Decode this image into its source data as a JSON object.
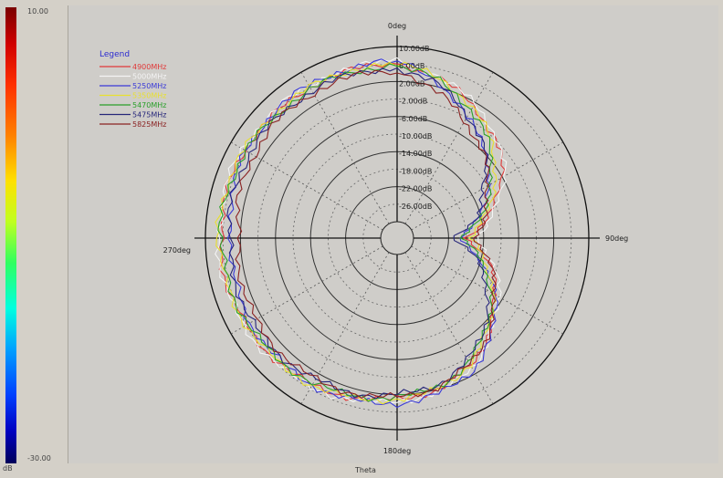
{
  "colorbar": {
    "max_label": "10.00",
    "min_label": "-30.00",
    "unit_label": "dB"
  },
  "axis": {
    "x_label": "Theta"
  },
  "chart_data": {
    "type": "line",
    "projection": "polar",
    "angle_labels": [
      {
        "angle": 0,
        "text": "0deg"
      },
      {
        "angle": 90,
        "text": "90deg"
      },
      {
        "angle": 180,
        "text": "180deg"
      },
      {
        "angle": 270,
        "text": "270deg"
      }
    ],
    "radial_range": [
      -30,
      10
    ],
    "radial_ticks": [
      {
        "value": 10,
        "text": "10.00dB"
      },
      {
        "value": 6,
        "text": "6.00dB"
      },
      {
        "value": 2,
        "text": "2.00dB"
      },
      {
        "value": -2,
        "text": "-2.00dB"
      },
      {
        "value": -6,
        "text": "-6.00dB"
      },
      {
        "value": -10,
        "text": "-10.00dB"
      },
      {
        "value": -14,
        "text": "-14.00dB"
      },
      {
        "value": -18,
        "text": "-18.00dB"
      },
      {
        "value": -22,
        "text": "-22.00dB"
      },
      {
        "value": -26,
        "text": "-26.00dB"
      }
    ],
    "grid": true,
    "legend": {
      "title": "Legend",
      "placement": "top-left"
    },
    "theta_deg": [
      0,
      15,
      30,
      45,
      60,
      75,
      90,
      105,
      120,
      135,
      150,
      165,
      180,
      195,
      210,
      225,
      240,
      255,
      270,
      285,
      300,
      315,
      330,
      345,
      360
    ],
    "series": [
      {
        "name": "4900MHz",
        "color": "#e03a3a",
        "values": [
          6.0,
          4.0,
          1.0,
          -2.0,
          -6.0,
          -12.0,
          -18.0,
          -12.0,
          -8.0,
          -4.0,
          0.0,
          2.0,
          3.0,
          4.0,
          5.0,
          5.5,
          6.0,
          6.5,
          6.5,
          6.5,
          6.5,
          6.0,
          6.0,
          6.0,
          6.0
        ]
      },
      {
        "name": "5000MHz",
        "color": "#f4f4f4",
        "values": [
          6.5,
          4.5,
          1.5,
          -1.5,
          -5.5,
          -11.0,
          -16.0,
          -11.0,
          -7.0,
          -3.5,
          0.5,
          2.5,
          3.5,
          4.5,
          5.5,
          6.0,
          6.5,
          7.0,
          7.0,
          7.0,
          7.0,
          6.5,
          6.5,
          6.5,
          6.5
        ]
      },
      {
        "name": "5250MHz",
        "color": "#3a3ad8",
        "values": [
          6.5,
          3.0,
          -2.0,
          -5.0,
          -10.0,
          -14.0,
          -20.0,
          -14.0,
          -8.0,
          -3.0,
          1.0,
          3.0,
          4.0,
          4.5,
          5.0,
          5.0,
          5.0,
          4.5,
          4.0,
          5.5,
          6.0,
          6.5,
          6.5,
          6.5,
          6.5
        ]
      },
      {
        "name": "5350MHz",
        "color": "#e8e030",
        "values": [
          6.0,
          4.0,
          0.5,
          -3.0,
          -8.0,
          -13.0,
          -17.0,
          -13.0,
          -8.5,
          -4.5,
          -0.5,
          2.0,
          3.0,
          4.0,
          5.0,
          5.5,
          6.0,
          6.5,
          7.0,
          7.0,
          6.5,
          6.0,
          6.0,
          6.0,
          6.0
        ]
      },
      {
        "name": "5470MHz",
        "color": "#2aa02a",
        "values": [
          5.5,
          3.5,
          0.0,
          -4.0,
          -9.0,
          -14.0,
          -19.0,
          -14.0,
          -9.0,
          -5.0,
          -1.0,
          1.5,
          2.5,
          3.5,
          4.5,
          5.0,
          5.5,
          6.0,
          6.5,
          6.5,
          6.0,
          5.5,
          5.5,
          5.5,
          5.5
        ]
      },
      {
        "name": "5475MHz",
        "color": "#26267a",
        "values": [
          5.0,
          2.5,
          -1.5,
          -5.5,
          -11.0,
          -15.0,
          -21.0,
          -15.0,
          -10.0,
          -5.5,
          -1.5,
          1.0,
          2.0,
          3.0,
          3.5,
          4.0,
          4.5,
          4.5,
          4.5,
          5.0,
          5.0,
          5.0,
          5.0,
          5.0,
          5.0
        ]
      },
      {
        "name": "5825MHz",
        "color": "#8a2222",
        "values": [
          4.5,
          1.0,
          -3.0,
          -6.0,
          -10.0,
          -13.0,
          -16.0,
          -12.0,
          -8.0,
          -4.0,
          -0.5,
          1.5,
          2.5,
          3.0,
          3.5,
          3.5,
          3.5,
          3.0,
          2.5,
          3.5,
          4.0,
          4.5,
          4.5,
          4.5,
          4.5
        ]
      }
    ]
  }
}
